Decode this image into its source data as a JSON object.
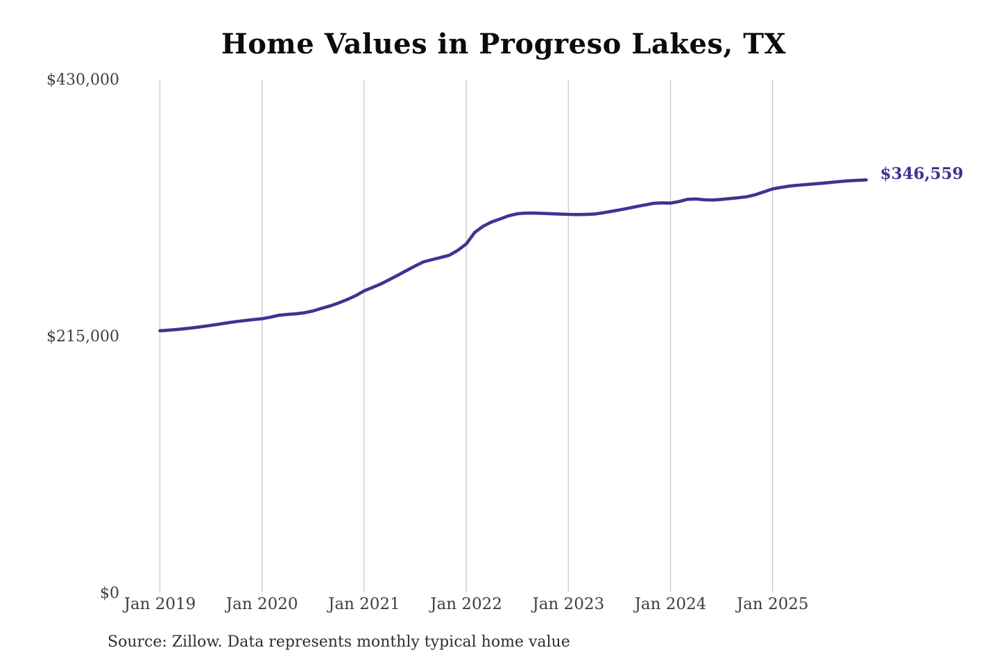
{
  "colors": {
    "line": "#3b3692",
    "grid": "#c8c8c8",
    "axis_text": "#3f3f3f",
    "title_text": "#0b0b0b",
    "background": "#ffffff"
  },
  "chart_data": {
    "type": "line",
    "title": "Home Values in Progreso Lakes, TX",
    "source_note": "Source: Zillow. Data represents monthly typical home value",
    "xlabel": "",
    "ylabel": "",
    "ylim": [
      0,
      430000
    ],
    "grid": "vertical-only",
    "legend": "none",
    "x_tick_labels": [
      "Jan 2019",
      "Jan 2020",
      "Jan 2021",
      "Jan 2022",
      "Jan 2023",
      "Jan 2024",
      "Jan 2025"
    ],
    "y_ticks": [
      {
        "value": 0,
        "label": "$0"
      },
      {
        "value": 215000,
        "label": "$215,000"
      },
      {
        "value": 430000,
        "label": "$430,000"
      }
    ],
    "final_value": 346559,
    "final_value_label": "$346,559",
    "x": [
      "2019-01",
      "2019-02",
      "2019-03",
      "2019-04",
      "2019-05",
      "2019-06",
      "2019-07",
      "2019-08",
      "2019-09",
      "2019-10",
      "2019-11",
      "2019-12",
      "2020-01",
      "2020-02",
      "2020-03",
      "2020-04",
      "2020-05",
      "2020-06",
      "2020-07",
      "2020-08",
      "2020-09",
      "2020-10",
      "2020-11",
      "2020-12",
      "2021-01",
      "2021-02",
      "2021-03",
      "2021-04",
      "2021-05",
      "2021-06",
      "2021-07",
      "2021-08",
      "2021-09",
      "2021-10",
      "2021-11",
      "2021-12",
      "2022-01",
      "2022-02",
      "2022-03",
      "2022-04",
      "2022-05",
      "2022-06",
      "2022-07",
      "2022-08",
      "2022-09",
      "2022-10",
      "2022-11",
      "2022-12",
      "2023-01",
      "2023-02",
      "2023-03",
      "2023-04",
      "2023-05",
      "2023-06",
      "2023-07",
      "2023-08",
      "2023-09",
      "2023-10",
      "2023-11",
      "2023-12",
      "2024-01",
      "2024-02",
      "2024-03",
      "2024-04",
      "2024-05",
      "2024-06",
      "2024-07",
      "2024-08",
      "2024-09",
      "2024-10",
      "2024-11",
      "2024-12",
      "2025-01",
      "2025-02",
      "2025-03",
      "2025-04",
      "2025-05",
      "2025-06",
      "2025-07",
      "2025-08",
      "2025-09",
      "2025-10",
      "2025-11",
      "2025-12"
    ],
    "series": [
      {
        "name": "Monthly typical home value",
        "color": "#3b3692",
        "values": [
          220200,
          220700,
          221300,
          222000,
          222800,
          223700,
          224700,
          225800,
          226900,
          227900,
          228800,
          229600,
          230300,
          231600,
          233200,
          233900,
          234400,
          235300,
          236800,
          239000,
          241000,
          243500,
          246300,
          249600,
          253600,
          256500,
          259500,
          263200,
          266900,
          270700,
          274500,
          278000,
          279800,
          281600,
          283400,
          287500,
          292900,
          302600,
          307800,
          311400,
          313900,
          316500,
          318200,
          318700,
          318700,
          318500,
          318200,
          317900,
          317700,
          317500,
          317600,
          317900,
          318900,
          320100,
          321400,
          322800,
          324200,
          325600,
          326900,
          327300,
          327100,
          328400,
          330300,
          330600,
          329900,
          329700,
          330200,
          330900,
          331600,
          332500,
          334200,
          336600,
          339000,
          340300,
          341400,
          342100,
          342700,
          343300,
          343900,
          344600,
          345200,
          345800,
          346200,
          346559
        ]
      }
    ]
  }
}
